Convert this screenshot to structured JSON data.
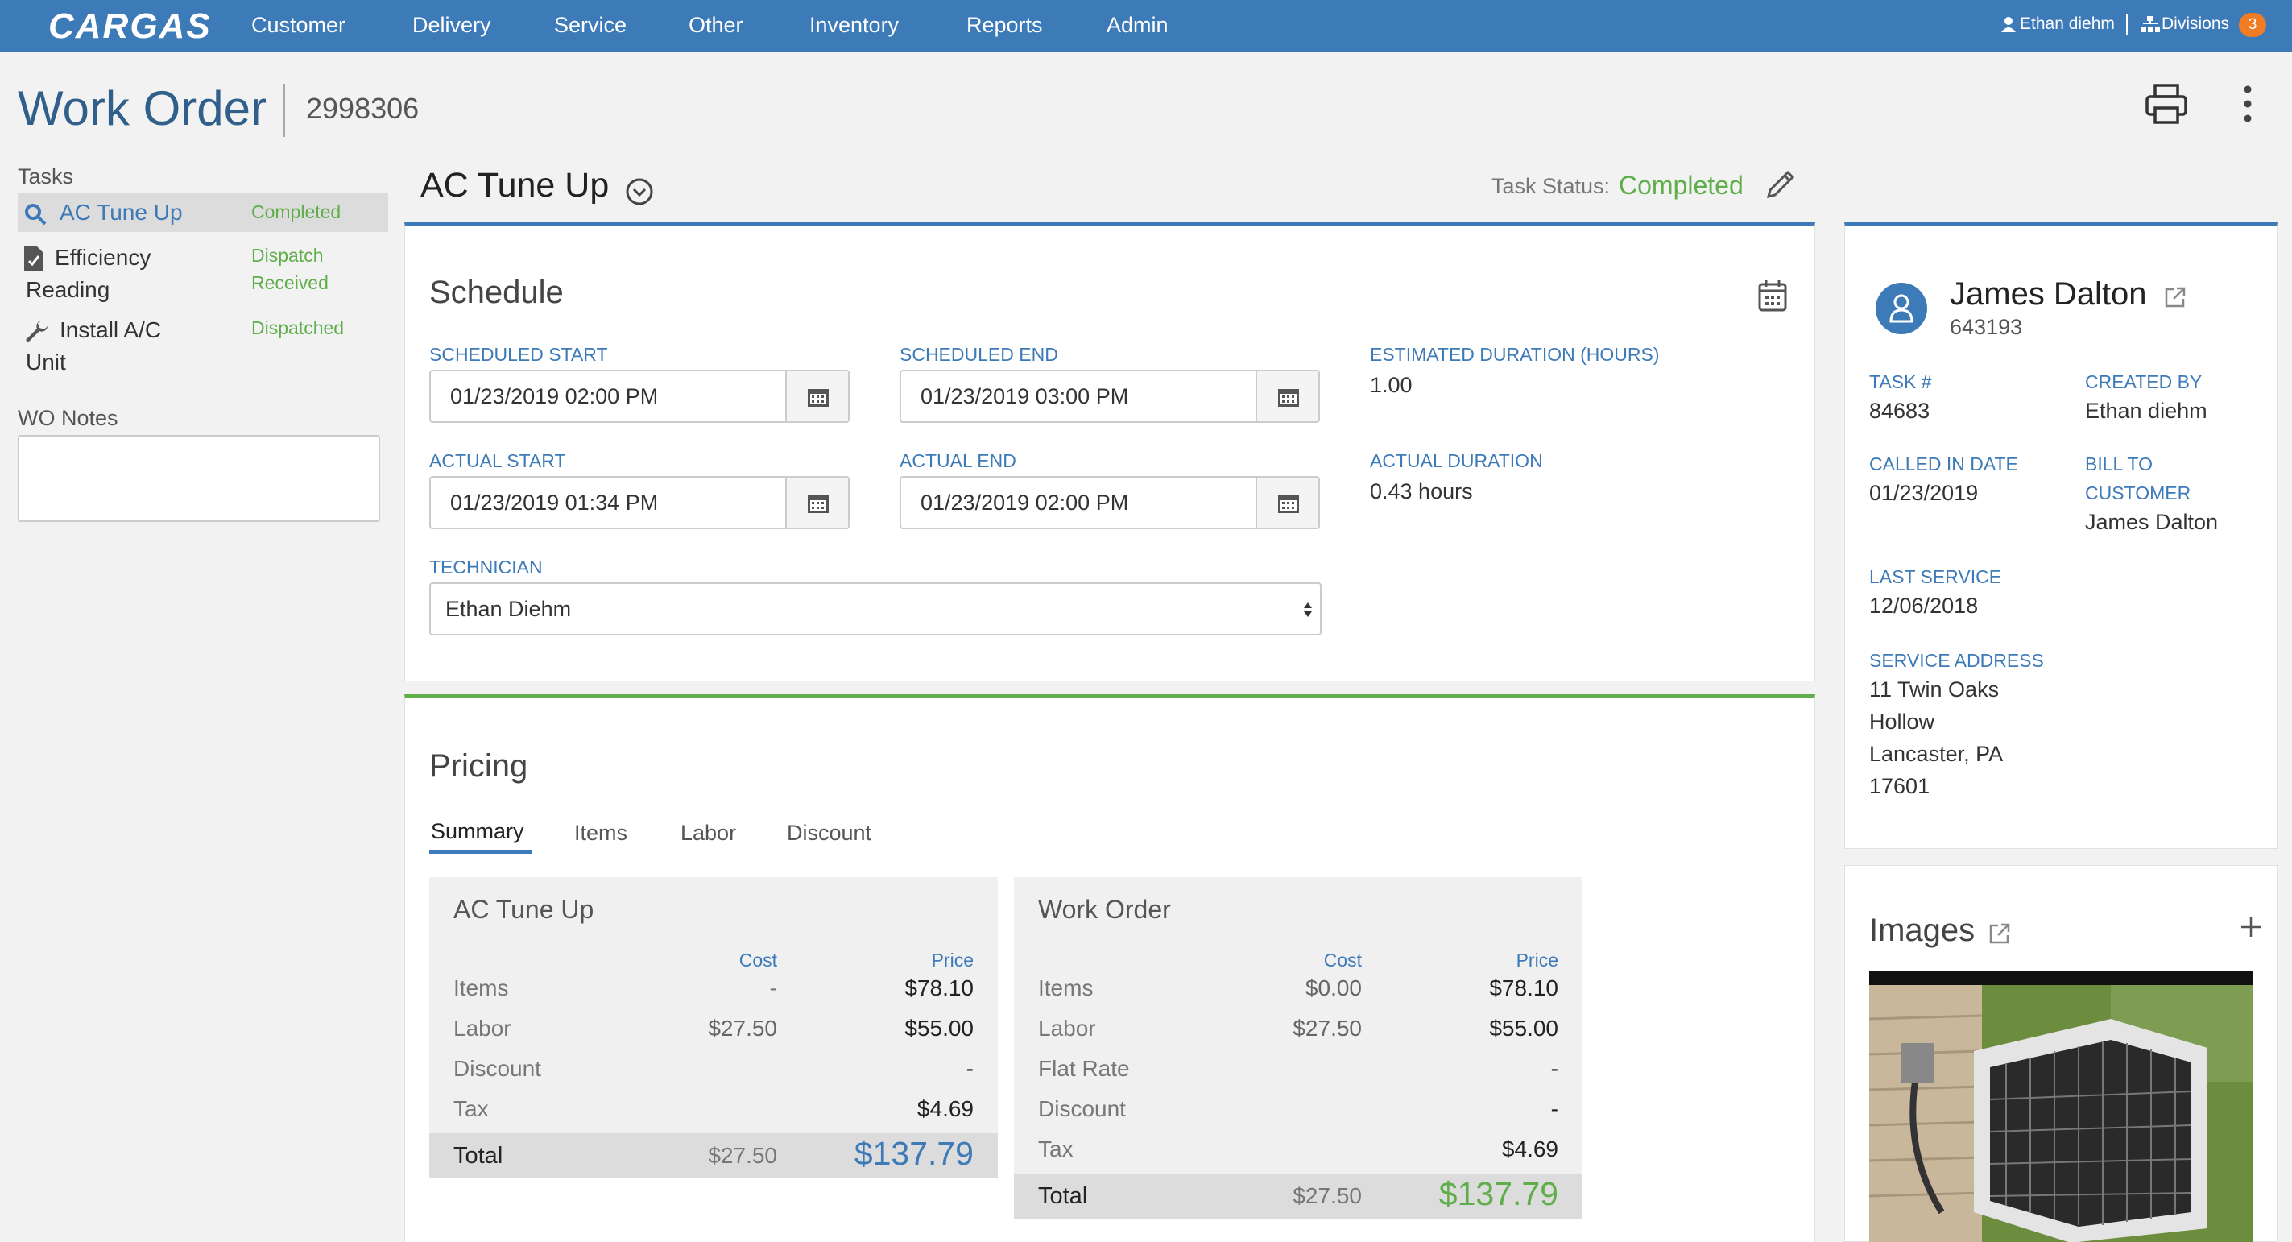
{
  "nav": {
    "logo": "CARGAS",
    "items": [
      "Customer",
      "Delivery",
      "Service",
      "Other",
      "Inventory",
      "Reports",
      "Admin"
    ],
    "user": "Ethan diehm",
    "divisions_label": "Divisions",
    "divisions_count": "3"
  },
  "header": {
    "title": "Work Order",
    "number": "2998306"
  },
  "sidebar": {
    "tasks_heading": "Tasks",
    "tasks": [
      {
        "label_line1": "AC Tune Up",
        "label_line2": "",
        "status_line1": "Completed",
        "status_line2": "",
        "icon": "search-icon"
      },
      {
        "label_line1": "Efficiency",
        "label_line2": "Reading",
        "status_line1": "Dispatch",
        "status_line2": "Received",
        "icon": "document-icon"
      },
      {
        "label_line1": "Install A/C",
        "label_line2": "Unit",
        "status_line1": "Dispatched",
        "status_line2": "",
        "icon": "wrench-icon"
      }
    ],
    "notes_heading": "WO Notes",
    "notes_value": ""
  },
  "task": {
    "title": "AC Tune Up",
    "status_label": "Task Status:",
    "status_value": "Completed"
  },
  "schedule": {
    "title": "Schedule",
    "scheduled_start_label": "SCHEDULED START",
    "scheduled_start": "01/23/2019 02:00 PM",
    "scheduled_end_label": "SCHEDULED END",
    "scheduled_end": "01/23/2019 03:00 PM",
    "est_duration_label": "ESTIMATED DURATION (HOURS)",
    "est_duration": "1.00",
    "actual_start_label": "ACTUAL START",
    "actual_start": "01/23/2019 01:34 PM",
    "actual_end_label": "ACTUAL END",
    "actual_end": "01/23/2019 02:00 PM",
    "actual_duration_label": "ACTUAL DURATION",
    "actual_duration": "0.43 hours",
    "technician_label": "TECHNICIAN",
    "technician": "Ethan Diehm"
  },
  "pricing": {
    "title": "Pricing",
    "tabs": [
      "Summary",
      "Items",
      "Labor",
      "Discount"
    ],
    "task_panel": {
      "title": "AC Tune Up",
      "cost_head": "Cost",
      "price_head": "Price",
      "rows": [
        {
          "label": "Items",
          "cost": "-",
          "price": "$78.10"
        },
        {
          "label": "Labor",
          "cost": "$27.50",
          "price": "$55.00"
        },
        {
          "label": "Discount",
          "cost": "",
          "price": "-"
        },
        {
          "label": "Tax",
          "cost": "",
          "price": "$4.69"
        }
      ],
      "total_label": "Total",
      "total_cost": "$27.50",
      "total_price": "$137.79"
    },
    "wo_panel": {
      "title": "Work Order",
      "cost_head": "Cost",
      "price_head": "Price",
      "rows": [
        {
          "label": "Items",
          "cost": "$0.00",
          "price": "$78.10"
        },
        {
          "label": "Labor",
          "cost": "$27.50",
          "price": "$55.00"
        },
        {
          "label": "Flat Rate",
          "cost": "",
          "price": "-"
        },
        {
          "label": "Discount",
          "cost": "",
          "price": "-"
        },
        {
          "label": "Tax",
          "cost": "",
          "price": "$4.69"
        }
      ],
      "total_label": "Total",
      "total_cost": "$27.50",
      "total_price": "$137.79"
    }
  },
  "customer": {
    "name": "James Dalton",
    "id": "643193",
    "task_num_label": "TASK #",
    "task_num": "84683",
    "created_by_label": "CREATED BY",
    "created_by": "Ethan diehm",
    "called_in_label": "CALLED IN DATE",
    "called_in": "01/23/2019",
    "bill_to_label_1": "BILL TO",
    "bill_to_label_2": "CUSTOMER",
    "bill_to": "James Dalton",
    "last_service_label": "LAST SERVICE",
    "last_service": "12/06/2018",
    "address_label": "SERVICE ADDRESS",
    "address_lines": [
      "11 Twin Oaks",
      "Hollow",
      "Lancaster, PA",
      "17601"
    ]
  },
  "images": {
    "title": "Images"
  },
  "colors": {
    "nav": "#3d7ab8",
    "completed": "#5fae4a",
    "label": "#3d7ab8",
    "price_blue": "#3d7ab8",
    "price_green": "#5fae4a"
  }
}
